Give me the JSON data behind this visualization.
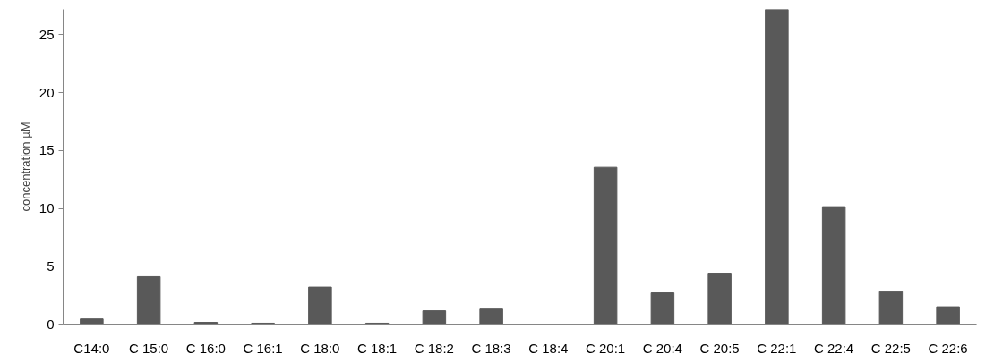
{
  "chart_data": {
    "type": "bar",
    "ylabel": "concentration µM",
    "categories": [
      "C14:0",
      "C 15:0",
      "C 16:0",
      "C 16:1",
      "C 18:0",
      "C 18:1",
      "C 18:2",
      "C 18:3",
      "C 18:4",
      "C 20:1",
      "C 20:4",
      "C 20:5",
      "C 22:1",
      "C 22:4",
      "C 22:5",
      "C 22:6"
    ],
    "values": [
      0.45,
      4.1,
      0.15,
      0.08,
      3.2,
      0.08,
      1.15,
      1.3,
      0,
      13.55,
      2.7,
      4.4,
      27.2,
      10.15,
      2.8,
      1.5
    ],
    "color": "#595959",
    "ylim": [
      0,
      27.2
    ],
    "yticks": [
      0,
      5,
      10,
      15,
      20,
      25
    ],
    "grid": false
  }
}
